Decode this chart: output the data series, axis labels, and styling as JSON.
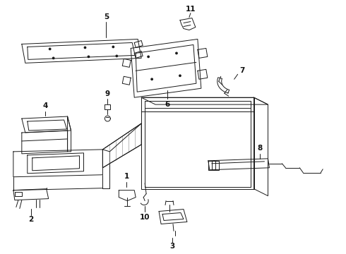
{
  "bg_color": "#ffffff",
  "line_color": "#1a1a1a",
  "label_color": "#111111",
  "figsize": [
    4.9,
    3.6
  ],
  "dpi": 100
}
